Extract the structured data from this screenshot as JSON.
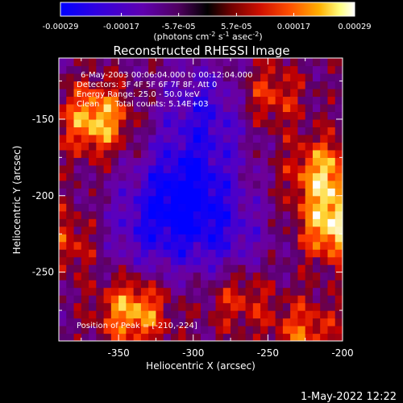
{
  "colorbar": {
    "tick_labels": [
      "-0.00029",
      "-0.00017",
      "-5.7e-05",
      "5.7e-05",
      "0.00017",
      "0.00029"
    ],
    "tick_values": [
      -0.00029,
      -0.00017,
      -5.7e-05,
      5.7e-05,
      0.00017,
      0.00029
    ],
    "range": [
      -0.00029,
      0.00029
    ],
    "units_main": "(photons cm",
    "units_exp1": "-2",
    "units_mid": " s",
    "units_exp2": "-1",
    "units_end": " asec",
    "units_exp3": "-2",
    "units_close": ")",
    "colormap": [
      "#0000ff",
      "#4000c0",
      "#8000a0",
      "#000000",
      "#b00000",
      "#ff4000",
      "#ffa000",
      "#ffff80",
      "#ffffff"
    ]
  },
  "annotations": {
    "line1": "6-May-2003 00:06:04.000 to 00:12:04.000",
    "line2": "Detectors: 3F 4F 5F 6F 7F 8F, Att 0",
    "line3": "Energy Range: 25.0 - 50.0 keV",
    "line4": "Clean      Total counts: 5.14E+03",
    "peak": "Position of Peak = [-210,-224]"
  },
  "footer_timestamp": "1-May-2022 12:22",
  "chart_data": {
    "type": "heatmap",
    "title": "Reconstructed RHESSI Image",
    "xlabel": "Heliocentric X (arcsec)",
    "ylabel": "Heliocentric Y (arcsec)",
    "xlim": [
      -390,
      -200
    ],
    "ylim": [
      -295,
      -110
    ],
    "xticks": [
      -350,
      -300,
      -250,
      -200
    ],
    "xtick_labels": [
      "-350",
      "-300",
      "-250",
      "-200"
    ],
    "yticks": [
      -150,
      -200,
      -250
    ],
    "ytick_labels": [
      "-150",
      "-200",
      "-250"
    ],
    "peak_position": [
      -210,
      -224
    ],
    "value_range": [
      -0.00029,
      0.00029
    ],
    "bright_regions": [
      {
        "x": -365,
        "y": -150,
        "level": 0.9
      },
      {
        "x": -205,
        "y": -220,
        "level": 0.95
      },
      {
        "x": -213,
        "y": -185,
        "level": 0.8
      },
      {
        "x": -340,
        "y": -275,
        "level": 0.85
      },
      {
        "x": -250,
        "y": -135,
        "level": 0.55
      },
      {
        "x": -270,
        "y": -265,
        "level": 0.5
      },
      {
        "x": -385,
        "y": -230,
        "level": 0.45
      },
      {
        "x": -225,
        "y": -290,
        "level": 0.55
      }
    ],
    "dark_regions": [
      {
        "x": -305,
        "y": -195,
        "level": -0.85
      },
      {
        "x": -290,
        "y": -145,
        "level": -0.6
      },
      {
        "x": -330,
        "y": -225,
        "level": -0.5
      },
      {
        "x": -280,
        "y": -230,
        "level": -0.5
      }
    ]
  }
}
